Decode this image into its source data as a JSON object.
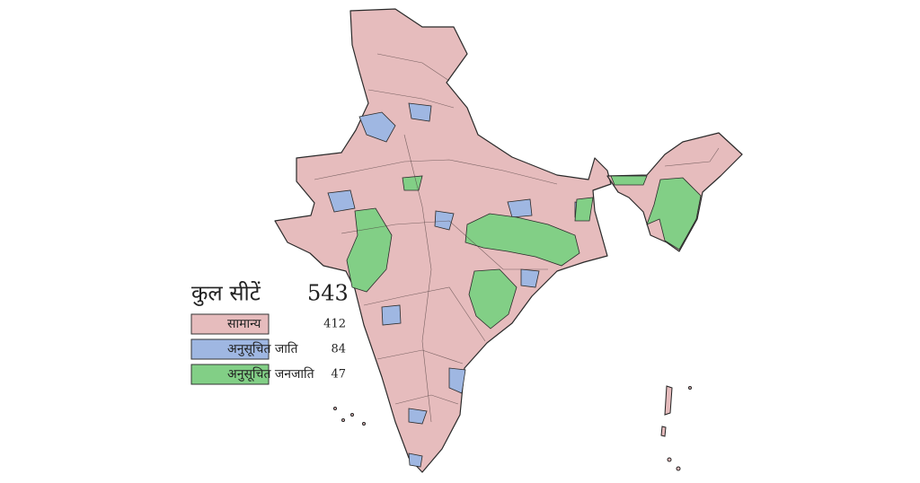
{
  "legend": {
    "title": "कुल सीटें",
    "total": 543,
    "items": [
      {
        "label": "सामान्य",
        "value": 412,
        "color": "#e6bcbd"
      },
      {
        "label": "अनुसूचित जाति",
        "value": 84,
        "color": "#9fb7e2"
      },
      {
        "label": "अनुसूचित जनजाति",
        "value": 47,
        "color": "#82cf86"
      }
    ]
  }
}
